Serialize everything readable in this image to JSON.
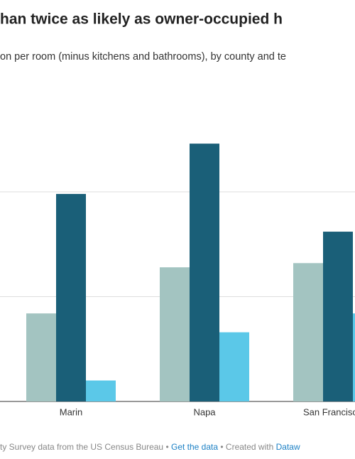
{
  "chart_data": {
    "type": "bar",
    "title": "han twice as likely as owner-occupied h",
    "subtitle": "on per room (minus kitchens and bathrooms), by county and te",
    "categories": [
      "Marin",
      "Napa",
      "San Francisc"
    ],
    "series": [
      {
        "color": "#a3c4c1",
        "values": [
          4.2,
          6.4,
          6.6
        ]
      },
      {
        "color": "#1a5f78",
        "values": [
          9.9,
          12.3,
          8.1
        ]
      },
      {
        "color": "#5bc8e8",
        "values": [
          1.0,
          3.3,
          4.2
        ]
      }
    ],
    "ylim": [
      0,
      14
    ],
    "yticks": [
      0,
      5,
      10
    ],
    "grid": true,
    "footer": {
      "source": "ty Survey data from the US Census Bureau • ",
      "get_data": "Get the data",
      "created": " • Created with ",
      "tool": "Dataw"
    }
  }
}
